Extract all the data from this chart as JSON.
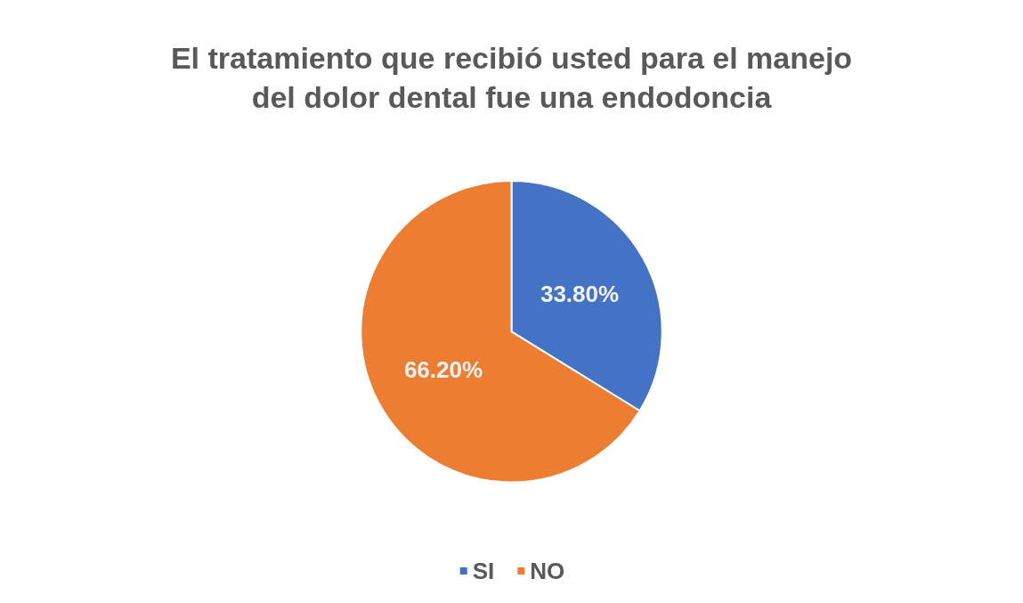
{
  "chart_data": {
    "type": "pie",
    "title": "El tratamiento que recibió usted para el manejo\ndel dolor dental fue una endodoncia",
    "categories": [
      "SI",
      "NO"
    ],
    "values": [
      33.8,
      66.2
    ],
    "colors": [
      "#4472c4",
      "#ed7d31"
    ],
    "value_labels": [
      "33.80%",
      "66.20%"
    ],
    "legend": "bottom"
  }
}
